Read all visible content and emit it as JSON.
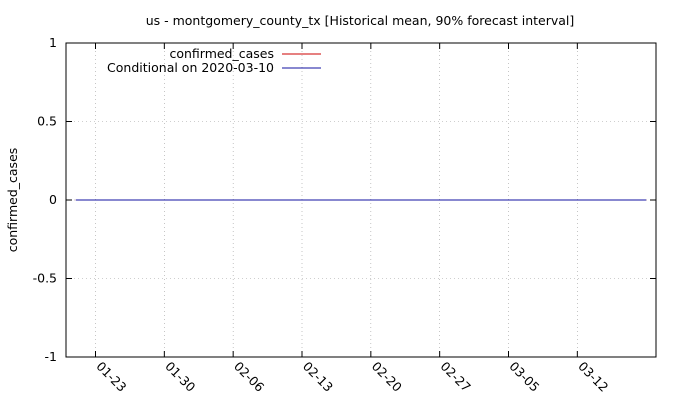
{
  "chart_data": {
    "type": "line",
    "title": "us - montgomery_county_tx [Historical mean, 90% forecast interval]",
    "xlabel": "",
    "ylabel": "confirmed_cases",
    "x_range": [
      "2020-01-20",
      "2020-03-20"
    ],
    "x_ticks": [
      {
        "date": "2020-01-23",
        "label": "01-23"
      },
      {
        "date": "2020-01-30",
        "label": "01-30"
      },
      {
        "date": "2020-02-06",
        "label": "02-06"
      },
      {
        "date": "2020-02-13",
        "label": "02-13"
      },
      {
        "date": "2020-02-20",
        "label": "02-20"
      },
      {
        "date": "2020-02-27",
        "label": "02-27"
      },
      {
        "date": "2020-03-05",
        "label": "03-05"
      },
      {
        "date": "2020-03-12",
        "label": "03-12"
      }
    ],
    "ylim": [
      -1,
      1
    ],
    "y_ticks": [
      {
        "value": 1,
        "label": "1"
      },
      {
        "value": 0.5,
        "label": "0.5"
      },
      {
        "value": 0,
        "label": "0"
      },
      {
        "value": -0.5,
        "label": "-0.5"
      },
      {
        "value": -1,
        "label": "-1"
      }
    ],
    "grid": true,
    "legend_position": "top-left",
    "series": [
      {
        "name": "confirmed_cases",
        "color": "#cc0000",
        "x": [
          "2020-01-21",
          "2020-03-19"
        ],
        "y": [
          0,
          0
        ]
      },
      {
        "name": "Conditional on 2020-03-10",
        "color": "#1010a0",
        "x": [
          "2020-01-21",
          "2020-03-19"
        ],
        "y": [
          0,
          0
        ]
      }
    ]
  }
}
